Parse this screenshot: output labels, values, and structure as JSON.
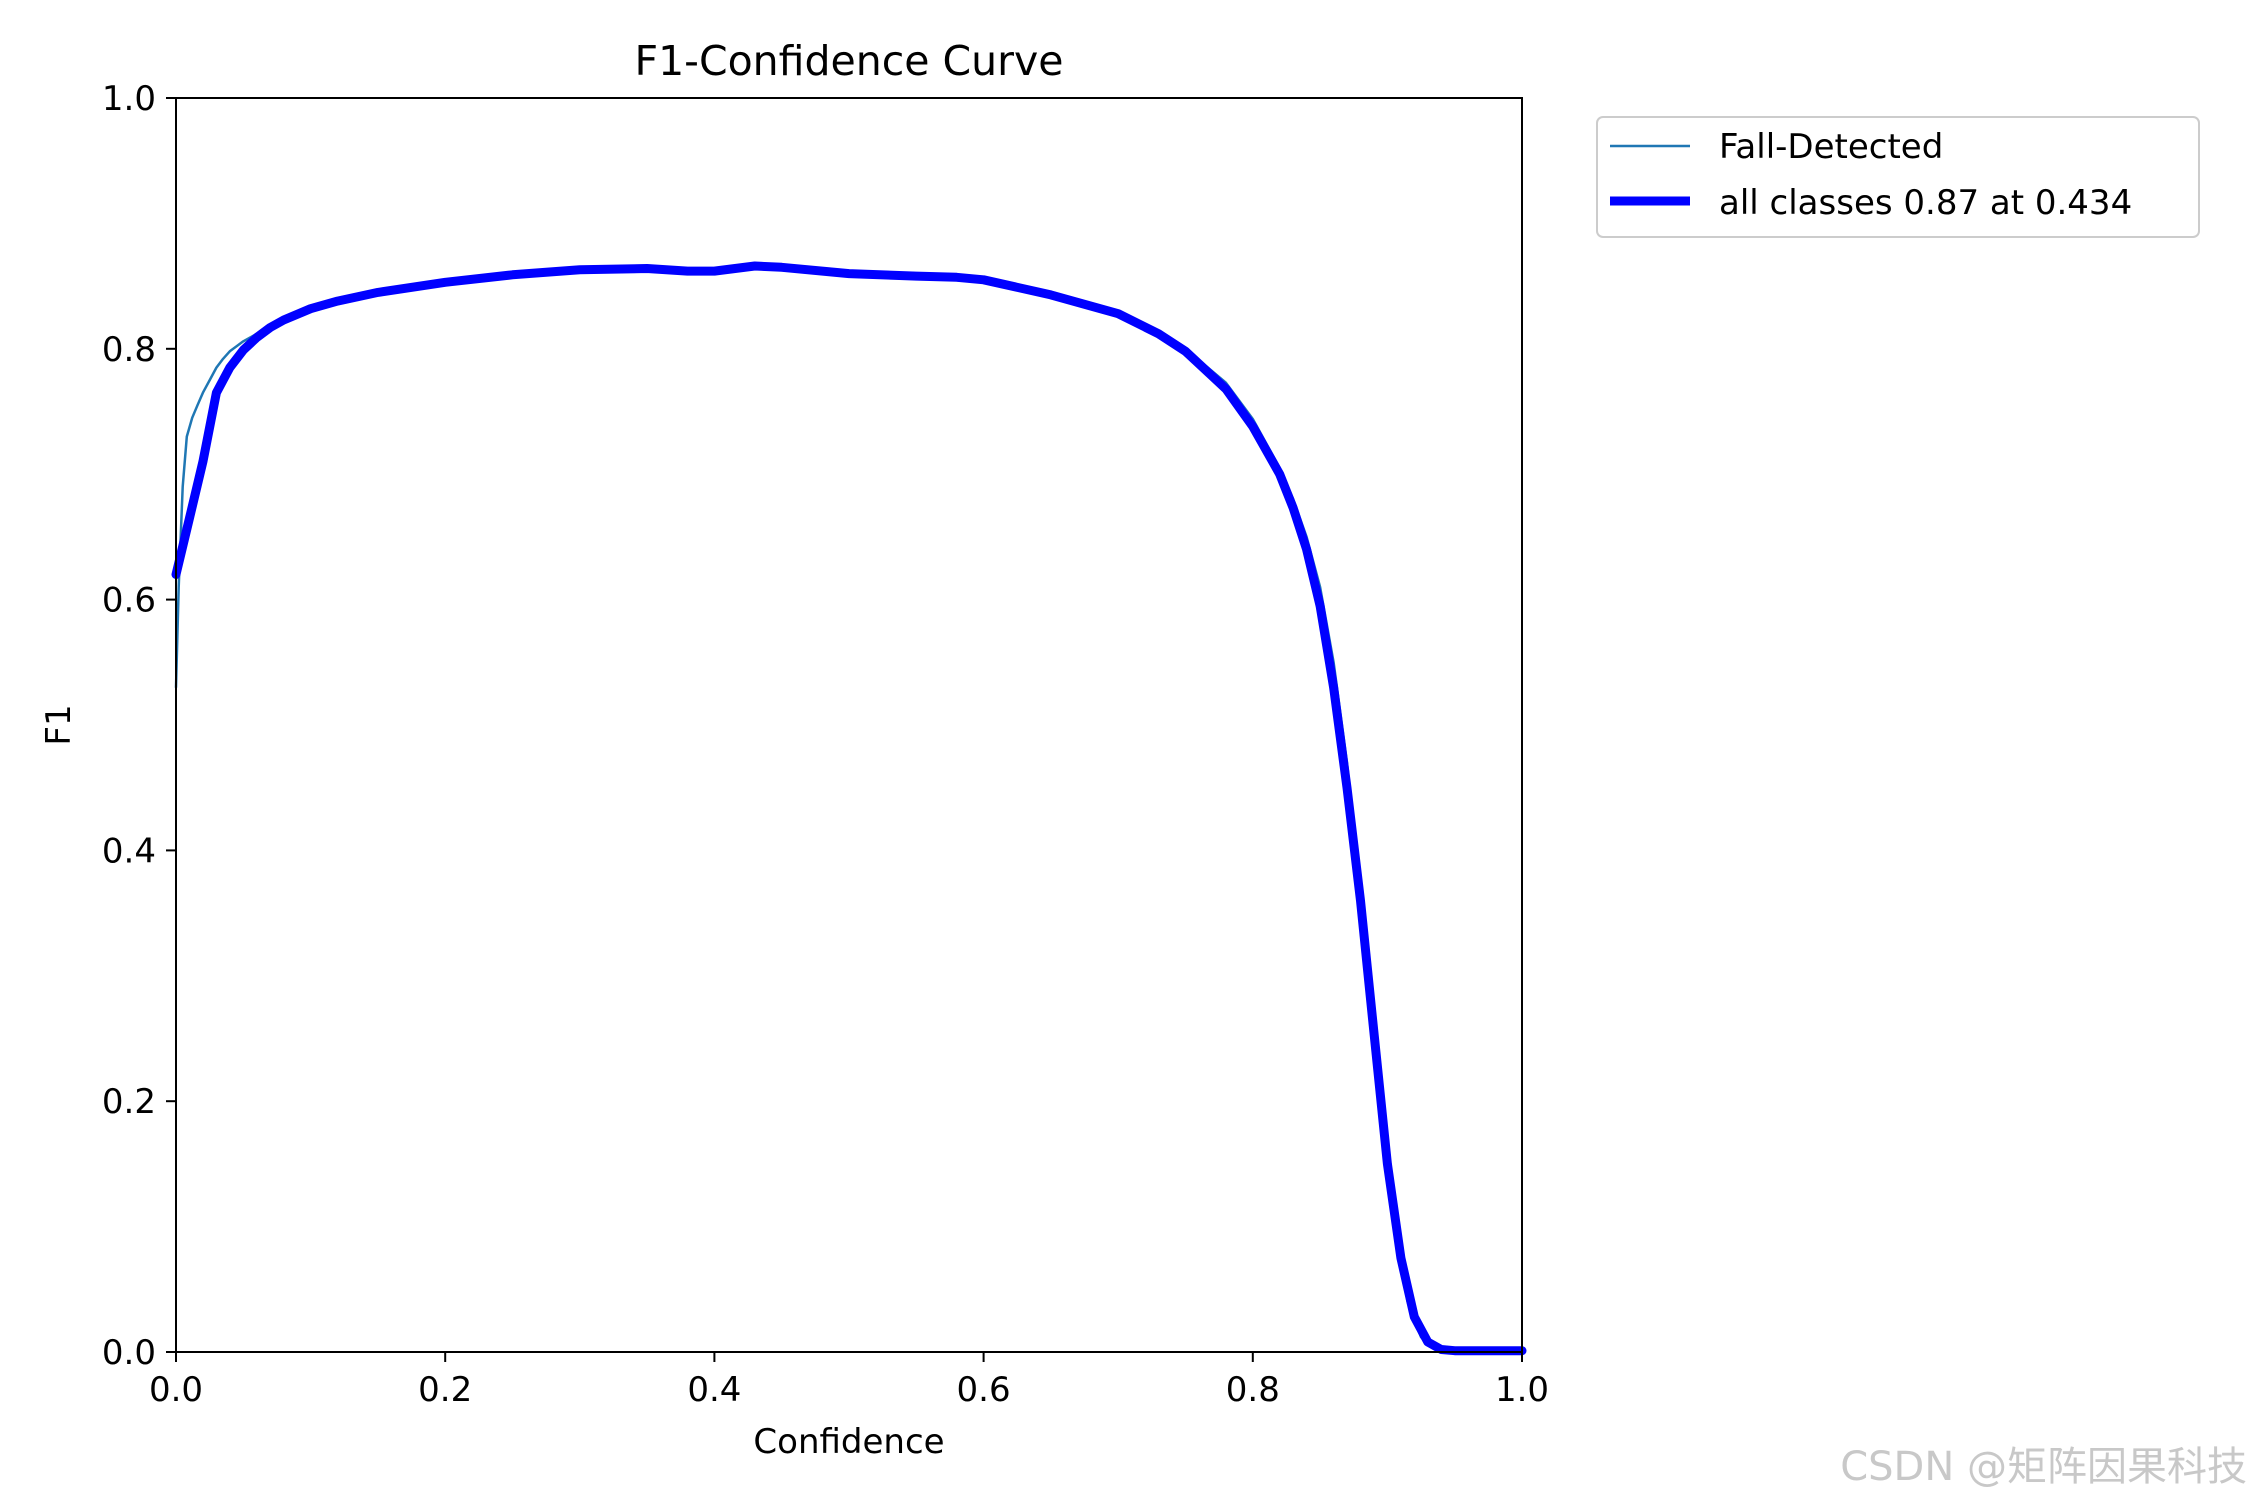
{
  "chart_data": {
    "type": "line",
    "title": "F1-Confidence Curve",
    "xlabel": "Confidence",
    "ylabel": "F1",
    "xlim": [
      0.0,
      1.0
    ],
    "ylim": [
      0.0,
      1.0
    ],
    "xticks": [
      "0.0",
      "0.2",
      "0.4",
      "0.6",
      "0.8",
      "1.0"
    ],
    "yticks": [
      "0.0",
      "0.2",
      "0.4",
      "0.6",
      "0.8",
      "1.0"
    ],
    "grid": false,
    "legend_position": "outside-top-right",
    "series": [
      {
        "name": "Fall-Detected",
        "color": "#1f77b4",
        "x": [
          0.0,
          0.002,
          0.005,
          0.008,
          0.012,
          0.016,
          0.02,
          0.025,
          0.03,
          0.035,
          0.04,
          0.045,
          0.05,
          0.06,
          0.07,
          0.08,
          0.1,
          0.12,
          0.15,
          0.2,
          0.25,
          0.3,
          0.35,
          0.4,
          0.43,
          0.45,
          0.5,
          0.55,
          0.6,
          0.65,
          0.7,
          0.75,
          0.78,
          0.8,
          0.82,
          0.83,
          0.84,
          0.85,
          0.86,
          0.87,
          0.88,
          0.89,
          0.9,
          0.91,
          0.915,
          0.92,
          0.925,
          0.93,
          0.935,
          0.94,
          0.95,
          0.96,
          1.0
        ],
        "values": [
          0.53,
          0.61,
          0.69,
          0.73,
          0.745,
          0.755,
          0.765,
          0.775,
          0.785,
          0.792,
          0.798,
          0.802,
          0.806,
          0.812,
          0.818,
          0.823,
          0.831,
          0.837,
          0.843,
          0.851,
          0.857,
          0.861,
          0.862,
          0.862,
          0.864,
          0.863,
          0.859,
          0.857,
          0.853,
          0.842,
          0.826,
          0.8,
          0.773,
          0.744,
          0.705,
          0.68,
          0.65,
          0.61,
          0.55,
          0.47,
          0.37,
          0.26,
          0.15,
          0.07,
          0.04,
          0.025,
          0.012,
          0.006,
          0.003,
          0.002,
          0.001,
          0.001,
          0.001
        ]
      },
      {
        "name": "all classes 0.87 at 0.434",
        "color": "#0000ff",
        "x": [
          0.0,
          0.01,
          0.02,
          0.03,
          0.04,
          0.05,
          0.06,
          0.07,
          0.08,
          0.1,
          0.12,
          0.15,
          0.2,
          0.25,
          0.3,
          0.35,
          0.38,
          0.4,
          0.43,
          0.45,
          0.5,
          0.55,
          0.58,
          0.6,
          0.65,
          0.7,
          0.73,
          0.75,
          0.78,
          0.8,
          0.82,
          0.83,
          0.84,
          0.85,
          0.86,
          0.87,
          0.88,
          0.89,
          0.9,
          0.91,
          0.92,
          0.93,
          0.94,
          0.95,
          0.96,
          1.0
        ],
        "values": [
          0.62,
          0.665,
          0.71,
          0.765,
          0.785,
          0.799,
          0.809,
          0.817,
          0.823,
          0.832,
          0.838,
          0.845,
          0.853,
          0.859,
          0.863,
          0.864,
          0.862,
          0.862,
          0.866,
          0.865,
          0.86,
          0.858,
          0.857,
          0.855,
          0.843,
          0.828,
          0.812,
          0.798,
          0.768,
          0.738,
          0.7,
          0.673,
          0.64,
          0.595,
          0.53,
          0.45,
          0.36,
          0.255,
          0.15,
          0.075,
          0.028,
          0.008,
          0.002,
          0.001,
          0.001,
          0.001
        ]
      }
    ]
  },
  "watermark": "CSDN @矩阵因果科技"
}
